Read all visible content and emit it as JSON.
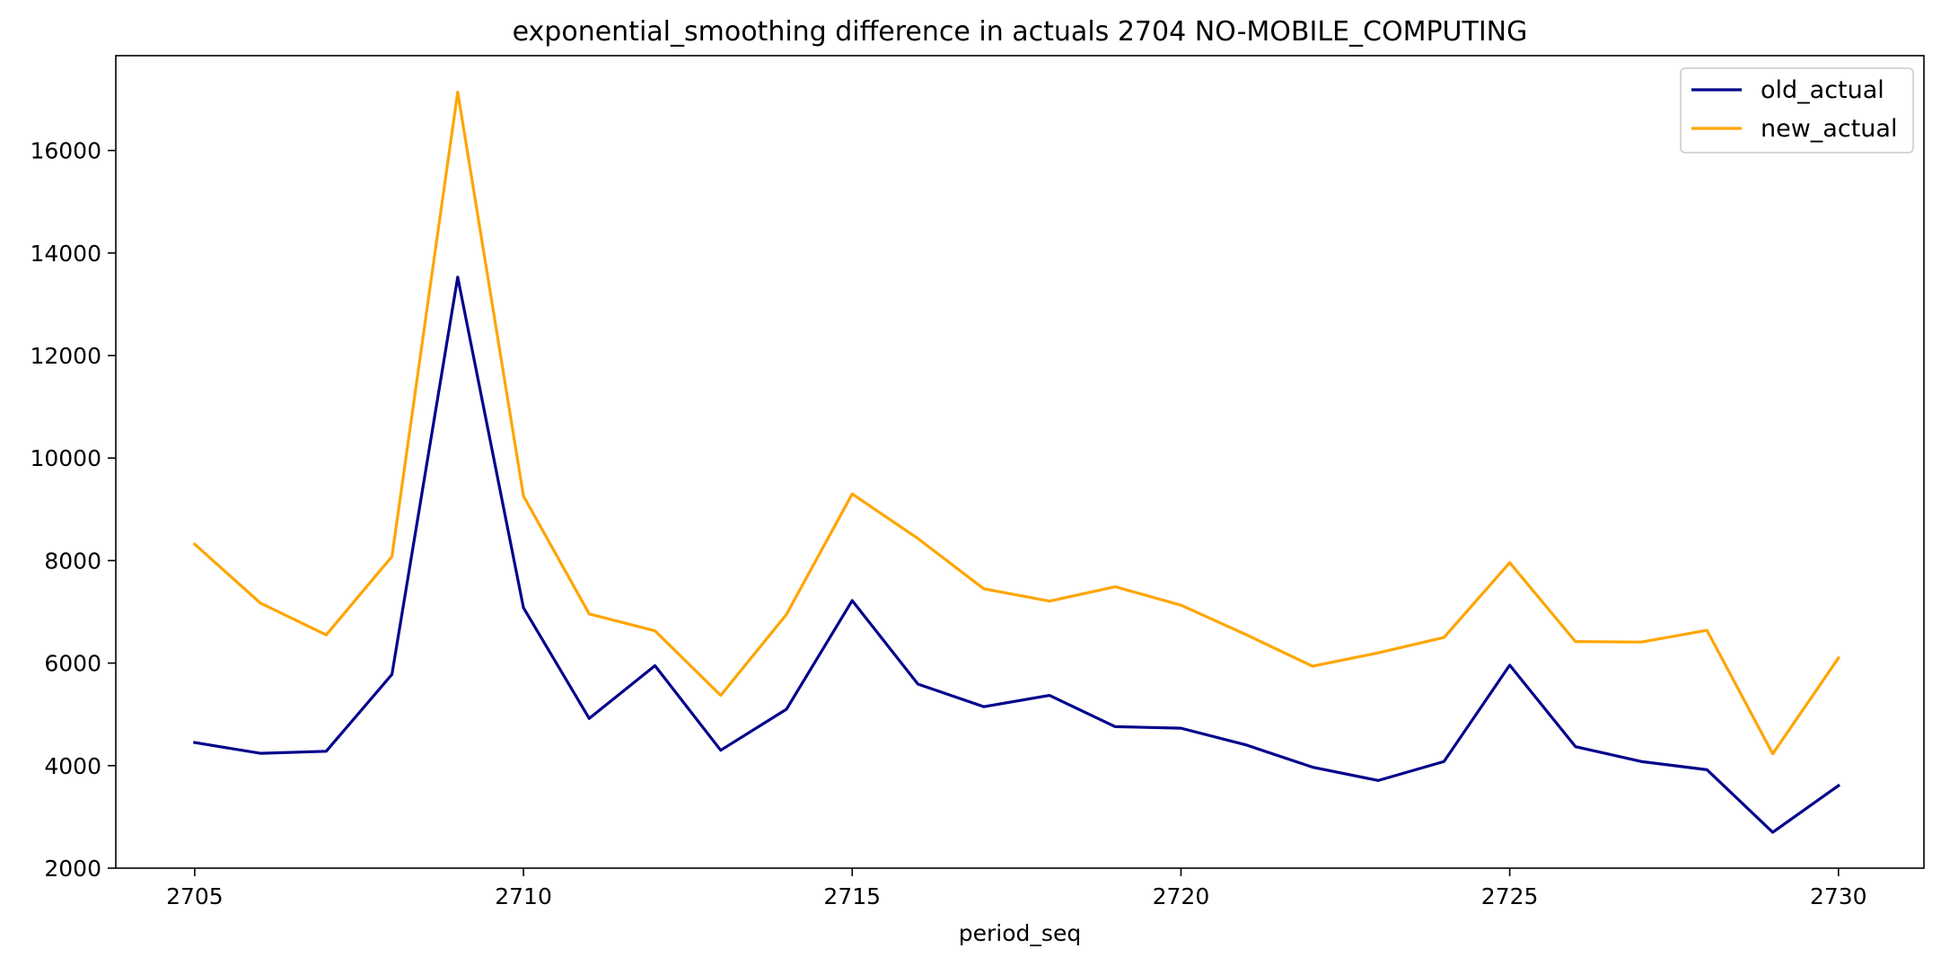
{
  "chart_data": {
    "type": "line",
    "title": "exponential_smoothing difference in actuals 2704 NO-MOBILE_COMPUTING",
    "xlabel": "period_seq",
    "ylabel": "",
    "xlim": [
      2703.8,
      2731.3
    ],
    "ylim": [
      2000,
      17850
    ],
    "x_ticks": [
      2705,
      2710,
      2715,
      2720,
      2725,
      2730
    ],
    "y_ticks": [
      2000,
      4000,
      6000,
      8000,
      10000,
      12000,
      14000,
      16000
    ],
    "grid": false,
    "legend_position": "top-right",
    "x": [
      2705,
      2706,
      2707,
      2708,
      2709,
      2710,
      2711,
      2712,
      2713,
      2714,
      2715,
      2716,
      2717,
      2718,
      2719,
      2720,
      2721,
      2722,
      2723,
      2724,
      2725,
      2726,
      2727,
      2728,
      2729,
      2730
    ],
    "series": [
      {
        "name": "old_actual",
        "color": "#00008b",
        "values": [
          4450,
          4240,
          4280,
          5780,
          13530,
          7080,
          4920,
          5950,
          4300,
          5100,
          7220,
          5590,
          5150,
          5370,
          4760,
          4730,
          4400,
          3970,
          3710,
          4080,
          5960,
          4370,
          4080,
          3920,
          2700,
          3610
        ]
      },
      {
        "name": "new_actual",
        "color": "#ffa500",
        "values": [
          8320,
          7170,
          6550,
          8080,
          17140,
          9260,
          6960,
          6630,
          5370,
          6950,
          9300,
          8430,
          7450,
          7210,
          7490,
          7130,
          6550,
          5940,
          6200,
          6500,
          7960,
          6420,
          6410,
          6640,
          4230,
          6100
        ]
      }
    ]
  }
}
